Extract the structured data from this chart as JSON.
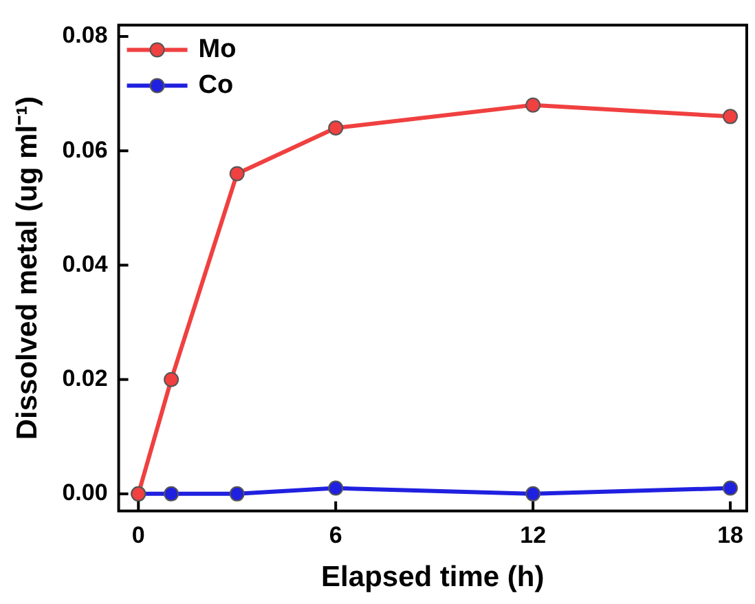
{
  "chart_data": {
    "type": "line",
    "xlabel": "Elapsed time (h)",
    "ylabel": "Dissolved metal (ug ml⁻¹)",
    "x": [
      0,
      1,
      3,
      6,
      12,
      18
    ],
    "series": [
      {
        "name": "Mo",
        "color": "#f04040",
        "values": [
          0,
          0.02,
          0.056,
          0.064,
          0.068,
          0.066
        ]
      },
      {
        "name": "Co",
        "color": "#2020e0",
        "values": [
          0,
          0,
          0,
          0.001,
          0,
          0.001
        ]
      }
    ],
    "xlim": [
      -0.6,
      18.5
    ],
    "xticks": [
      0,
      6,
      12,
      18
    ],
    "ylim": [
      -0.003,
      0.082
    ],
    "yticks": [
      {
        "value": 0,
        "label": "0.00"
      },
      {
        "value": 0.02,
        "label": "0.02"
      },
      {
        "value": 0.04,
        "label": "0.04"
      },
      {
        "value": 0.06,
        "label": "0.06"
      },
      {
        "value": 0.08,
        "label": "0.08"
      }
    ],
    "grid": false,
    "legend": "top left",
    "marker": "circle",
    "line_style": "solid"
  }
}
